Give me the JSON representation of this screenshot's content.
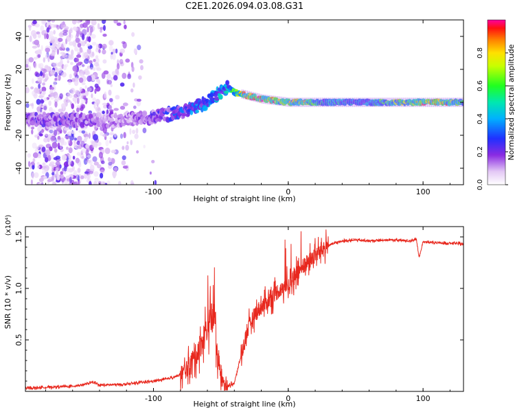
{
  "title": "C2E1.2026.094.03.08.G31",
  "chart_data": [
    {
      "type": "heatmap",
      "name": "spectrogram",
      "xlabel": "Height of straight line (km)",
      "ylabel": "Frequency (Hz)",
      "xlim": [
        -195,
        130
      ],
      "ylim": [
        -50,
        50
      ],
      "x_ticks": [
        -100,
        0,
        100
      ],
      "y_ticks": [
        -40,
        -20,
        0,
        20,
        40
      ],
      "colorbar": {
        "label": "Normalized spectral amplitude",
        "range": [
          0.0,
          1.0
        ],
        "ticks": [
          "0.0",
          "0.2",
          "0.4",
          "0.6",
          "0.8"
        ],
        "tick_values": [
          0.0,
          0.2,
          0.4,
          0.6,
          0.8
        ]
      },
      "ridge": {
        "x": [
          -195,
          -160,
          -130,
          -100,
          -80,
          -60,
          -45,
          -40,
          -30,
          -20,
          -10,
          0,
          10,
          20,
          40,
          60,
          80,
          95,
          100,
          110,
          130
        ],
        "freq_hz": [
          -10,
          -11,
          -11,
          -9,
          -6,
          0,
          9,
          6,
          4,
          2,
          1,
          0,
          0,
          0,
          0,
          0,
          0,
          0,
          0,
          0,
          0
        ],
        "amplitude": [
          0.2,
          0.2,
          0.15,
          0.2,
          0.3,
          0.4,
          0.45,
          0.6,
          0.9,
          0.95,
          0.85,
          0.7,
          0.8,
          0.55,
          0.45,
          0.45,
          0.7,
          0.75,
          0.9,
          0.9,
          0.6
        ]
      }
    },
    {
      "type": "line",
      "name": "snr",
      "xlabel": "Height of straight line (km)",
      "ylabel": "SNR (10 * v/v)",
      "y_multiplier": "(x10⁴)",
      "xlim": [
        -195,
        130
      ],
      "ylim": [
        0.0,
        1.6
      ],
      "x_ticks": [
        -100,
        0,
        100
      ],
      "y_ticks": [
        0.5,
        1.0,
        1.5
      ],
      "y_tick_labels": [
        "0.5",
        "1.0",
        "1.5"
      ],
      "line_color": "#e8281e",
      "series": [
        {
          "name": "SNR",
          "x": [
            -195,
            -180,
            -160,
            -150,
            -145,
            -140,
            -120,
            -100,
            -90,
            -80,
            -75,
            -70,
            -65,
            -60,
            -55,
            -52,
            -48,
            -45,
            -40,
            -35,
            -30,
            -25,
            -20,
            -15,
            -10,
            -5,
            0,
            5,
            10,
            15,
            20,
            25,
            30,
            40,
            50,
            60,
            70,
            80,
            90,
            95,
            97,
            100,
            105,
            110,
            120,
            130
          ],
          "y": [
            0.03,
            0.04,
            0.05,
            0.07,
            0.09,
            0.06,
            0.07,
            0.1,
            0.12,
            0.16,
            0.22,
            0.32,
            0.45,
            0.62,
            0.75,
            0.3,
            0.08,
            0.05,
            0.08,
            0.35,
            0.6,
            0.75,
            0.82,
            0.88,
            0.95,
            1.0,
            1.05,
            1.12,
            1.2,
            1.26,
            1.32,
            1.38,
            1.42,
            1.46,
            1.47,
            1.46,
            1.47,
            1.47,
            1.46,
            1.48,
            1.3,
            1.45,
            1.45,
            1.44,
            1.44,
            1.43
          ]
        }
      ]
    }
  ]
}
